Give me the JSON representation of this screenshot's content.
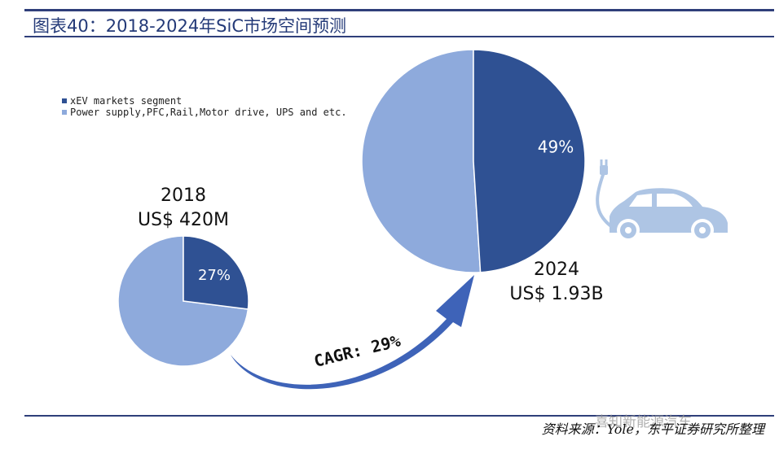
{
  "title": "图表40：2018-2024年SiC市场空间预测",
  "chart_data": {
    "type": "pie",
    "legend_position": "top-left",
    "legend": [
      "xEV markets segment",
      "Power supply,PFC,Rail,Motor drive, UPS and etc."
    ],
    "colors": {
      "xev": "#2f5193",
      "other": "#8eaadc",
      "arrow": "#3e63b8",
      "rule": "#2f3f7a"
    },
    "charts": [
      {
        "year": "2018",
        "total_label": "US$ 420M",
        "values": [
          27,
          73
        ],
        "xev_label": "27%"
      },
      {
        "year": "2024",
        "total_label": "US$ 1.93B",
        "values": [
          49,
          51
        ],
        "xev_label": "49%"
      }
    ],
    "annotation": "CAGR: 29%"
  },
  "icon": "electric-car-icon",
  "source": "资料来源：Yole，东平证券研究所整理",
  "watermark": "喜知新能源汽车"
}
